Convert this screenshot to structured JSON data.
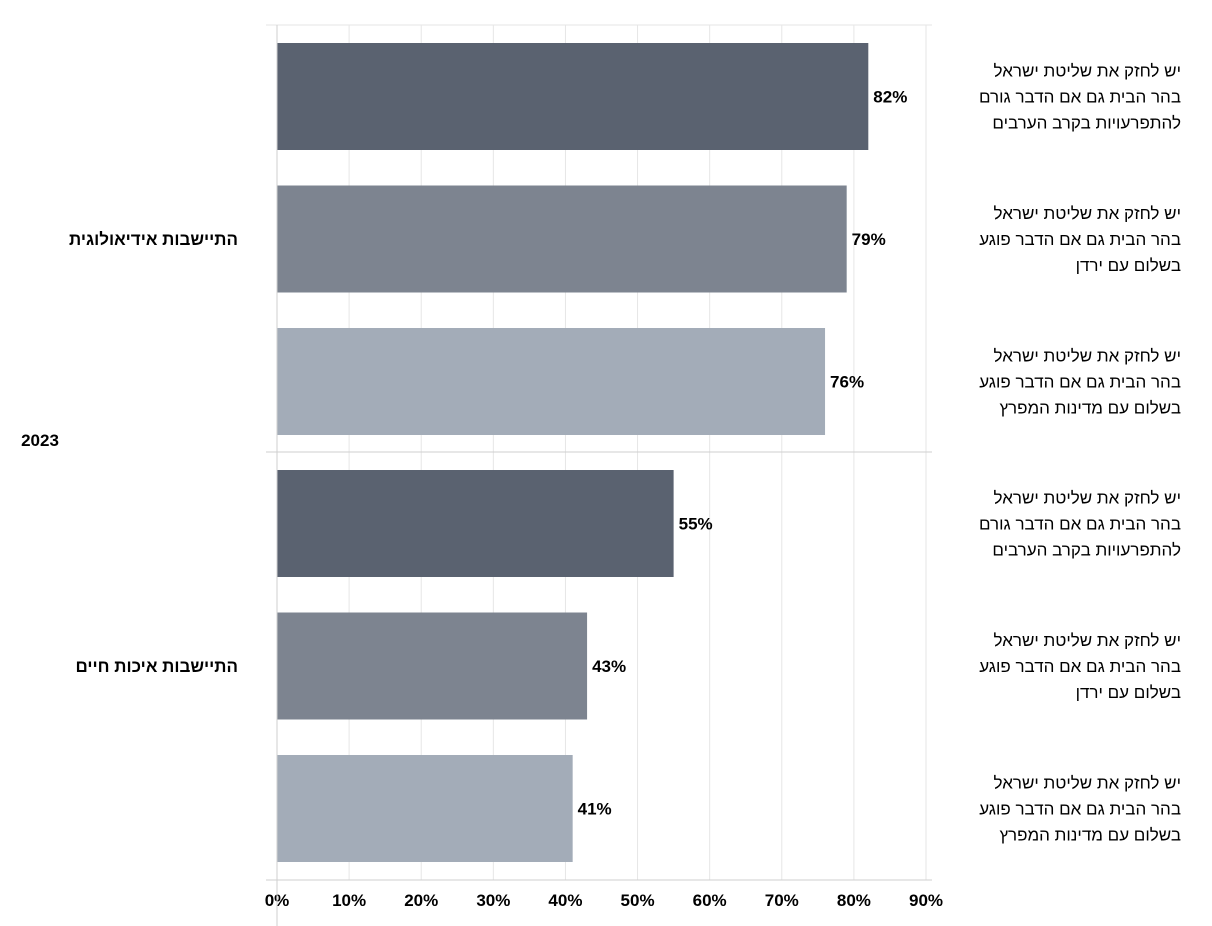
{
  "chart_data": {
    "type": "bar",
    "orientation": "horizontal",
    "year_label": "2023",
    "xlim": [
      0,
      90
    ],
    "x_ticks": [
      "0%",
      "10%",
      "20%",
      "30%",
      "40%",
      "50%",
      "60%",
      "70%",
      "80%",
      "90%"
    ],
    "value_suffix": "%",
    "grid": true,
    "colors": [
      "#5a6270",
      "#7d8490",
      "#a3acb8"
    ],
    "groups": [
      {
        "name": "התיישבות אידיאולוגית",
        "bars": [
          {
            "label": [
              "יש לחזק את שליטת ישראל",
              "בהר הבית גם אם הדבר גורם",
              "להתפרעויות בקרב הערבים"
            ],
            "value": 82,
            "value_label": "82%"
          },
          {
            "label": [
              "יש לחזק את שליטת ישראל",
              "בהר הבית גם אם הדבר פוגע",
              "בשלום עם ירדן"
            ],
            "value": 79,
            "value_label": "79%"
          },
          {
            "label": [
              "יש לחזק את שליטת ישראל",
              "בהר הבית גם אם הדבר פוגע",
              "בשלום עם מדינות המפרץ"
            ],
            "value": 76,
            "value_label": "76%"
          }
        ]
      },
      {
        "name": "התיישבות איכות חיים",
        "bars": [
          {
            "label": [
              "יש לחזק את שליטת ישראל",
              "בהר הבית גם אם הדבר גורם",
              "להתפרעויות בקרב הערבים"
            ],
            "value": 55,
            "value_label": "55%"
          },
          {
            "label": [
              "יש לחזק את שליטת ישראל",
              "בהר הבית גם אם הדבר פוגע",
              "בשלום עם ירדן"
            ],
            "value": 43,
            "value_label": "43%"
          },
          {
            "label": [
              "יש לחזק את שליטת ישראל",
              "בהר הבית גם אם הדבר פוגע",
              "בשלום עם מדינות המפרץ"
            ],
            "value": 41,
            "value_label": "41%"
          }
        ]
      }
    ]
  }
}
